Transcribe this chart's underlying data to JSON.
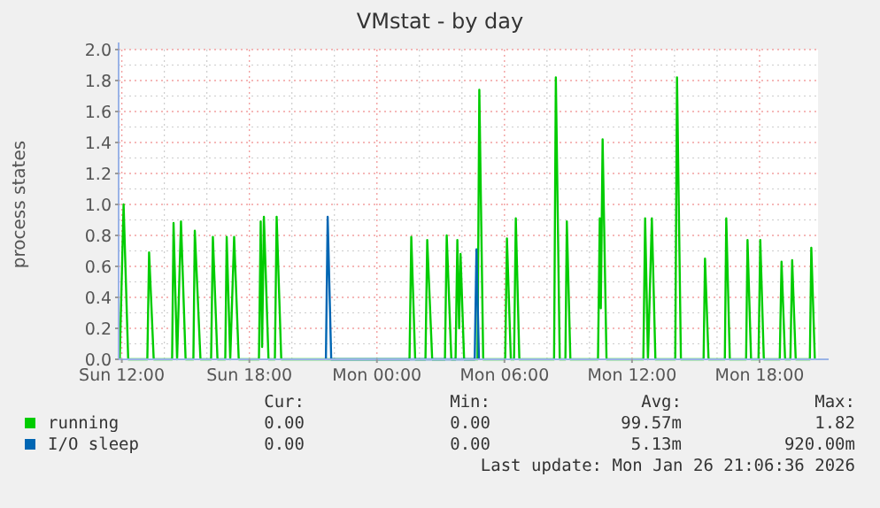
{
  "chart_data": {
    "type": "line",
    "title": "VMstat - by day",
    "ylabel": "process states",
    "xlim": [
      "2026-01-25T11:51",
      "2026-01-26T20:45"
    ],
    "ylim": [
      0,
      2
    ],
    "xticks": [
      {
        "value": "2026-01-25T12:00",
        "label": "Sun 12:00"
      },
      {
        "value": "2026-01-25T18:00",
        "label": "Sun 18:00"
      },
      {
        "value": "2026-01-26T00:00",
        "label": "Mon 00:00"
      },
      {
        "value": "2026-01-26T06:00",
        "label": "Mon 06:00"
      },
      {
        "value": "2026-01-26T12:00",
        "label": "Mon 12:00"
      },
      {
        "value": "2026-01-26T18:00",
        "label": "Mon 18:00"
      }
    ],
    "yticks": [
      {
        "value": 0,
        "label": "0.0"
      },
      {
        "value": 0.2,
        "label": "0.2"
      },
      {
        "value": 0.4,
        "label": "0.4"
      },
      {
        "value": 0.6,
        "label": "0.6"
      },
      {
        "value": 0.8,
        "label": "0.8"
      },
      {
        "value": 1,
        "label": "1.0"
      },
      {
        "value": 1.2,
        "label": "1.2"
      },
      {
        "value": 1.4,
        "label": "1.4"
      },
      {
        "value": 1.6,
        "label": "1.6"
      },
      {
        "value": 1.8,
        "label": "1.8"
      },
      {
        "value": 2,
        "label": "2.0"
      }
    ],
    "grid": true,
    "legend": "bottom",
    "series": [
      {
        "name": "running",
        "color": "#00cc00",
        "x": [
          "2026-01-25T11:54",
          "2026-01-25T12:05",
          "2026-01-25T12:18",
          "2026-01-25T13:12",
          "2026-01-25T13:17",
          "2026-01-25T13:30",
          "2026-01-25T14:22",
          "2026-01-25T14:26",
          "2026-01-25T14:36",
          "2026-01-25T14:47",
          "2026-01-25T15:00",
          "2026-01-25T15:22",
          "2026-01-25T15:26",
          "2026-01-25T15:42",
          "2026-01-25T16:12",
          "2026-01-25T16:17",
          "2026-01-25T16:30",
          "2026-01-25T16:52",
          "2026-01-25T16:56",
          "2026-01-25T17:06",
          "2026-01-25T17:17",
          "2026-01-25T17:30",
          "2026-01-25T18:27",
          "2026-01-25T18:32",
          "2026-01-25T18:36",
          "2026-01-25T18:41",
          "2026-01-25T18:54",
          "2026-01-25T19:12",
          "2026-01-25T19:17",
          "2026-01-25T19:30",
          "2026-01-26T01:32",
          "2026-01-26T01:37",
          "2026-01-26T01:48",
          "2026-01-26T02:17",
          "2026-01-26T02:22",
          "2026-01-26T02:36",
          "2026-01-26T03:12",
          "2026-01-26T03:17",
          "2026-01-26T03:30",
          "2026-01-26T03:42",
          "2026-01-26T03:47",
          "2026-01-26T03:52",
          "2026-01-26T03:56",
          "2026-01-26T04:06",
          "2026-01-26T04:44",
          "2026-01-26T04:49",
          "2026-01-26T05:00",
          "2026-01-26T06:02",
          "2026-01-26T06:07",
          "2026-01-26T06:18",
          "2026-01-26T06:27",
          "2026-01-26T06:32",
          "2026-01-26T06:42",
          "2026-01-26T08:20",
          "2026-01-26T08:25",
          "2026-01-26T08:36",
          "2026-01-26T08:52",
          "2026-01-26T08:56",
          "2026-01-26T09:06",
          "2026-01-26T10:24",
          "2026-01-26T10:29",
          "2026-01-26T10:32",
          "2026-01-26T10:37",
          "2026-01-26T10:48",
          "2026-01-26T12:32",
          "2026-01-26T12:37",
          "2026-01-26T12:45",
          "2026-01-26T12:56",
          "2026-01-26T13:06",
          "2026-01-26T14:02",
          "2026-01-26T14:07",
          "2026-01-26T14:18",
          "2026-01-26T15:22",
          "2026-01-26T15:26",
          "2026-01-26T15:36",
          "2026-01-26T16:22",
          "2026-01-26T16:26",
          "2026-01-26T16:36",
          "2026-01-26T17:22",
          "2026-01-26T17:26",
          "2026-01-26T17:36",
          "2026-01-26T17:57",
          "2026-01-26T18:02",
          "2026-01-26T18:12",
          "2026-01-26T18:57",
          "2026-01-26T19:02",
          "2026-01-26T19:12",
          "2026-01-26T19:27",
          "2026-01-26T19:32",
          "2026-01-26T19:42",
          "2026-01-26T20:22",
          "2026-01-26T20:26",
          "2026-01-26T20:36"
        ],
        "values": [
          0,
          1.0,
          0,
          0,
          0.69,
          0,
          0,
          0.88,
          0,
          0.89,
          0,
          0,
          0.83,
          0,
          0,
          0.79,
          0,
          0,
          0.79,
          0,
          0.79,
          0,
          0,
          0.89,
          0.08,
          0.92,
          0,
          0,
          0.92,
          0,
          0,
          0.79,
          0,
          0,
          0.77,
          0,
          0,
          0.8,
          0,
          0,
          0.77,
          0.2,
          0.68,
          0,
          0,
          1.74,
          0,
          0,
          0.78,
          0,
          0,
          0.91,
          0,
          0,
          1.82,
          0,
          0,
          0.89,
          0,
          0,
          0.91,
          0.33,
          1.42,
          0,
          0,
          0.91,
          0,
          0.91,
          0,
          0,
          1.82,
          0,
          0,
          0.65,
          0,
          0,
          0.91,
          0,
          0,
          0.77,
          0,
          0,
          0.77,
          0,
          0,
          0.63,
          0,
          0,
          0.64,
          0,
          0,
          0.72,
          0
        ]
      },
      {
        "name": "I/O sleep",
        "color": "#0066b3",
        "x": [
          "2026-01-25T21:36",
          "2026-01-25T21:41",
          "2026-01-25T21:51",
          "2026-01-26T04:36",
          "2026-01-26T04:41",
          "2026-01-26T04:48"
        ],
        "values": [
          0,
          0.92,
          0,
          0,
          0.71,
          0
        ]
      }
    ],
    "annotations": [
      "Cur:",
      "Min:",
      "Avg:",
      "Max:",
      "0.00",
      "0.00",
      "99.57m",
      "1.82",
      "0.00",
      "0.00",
      "5.13m",
      "920.00m",
      "Last update: Mon Jan 26 21:06:36 2026"
    ]
  }
}
